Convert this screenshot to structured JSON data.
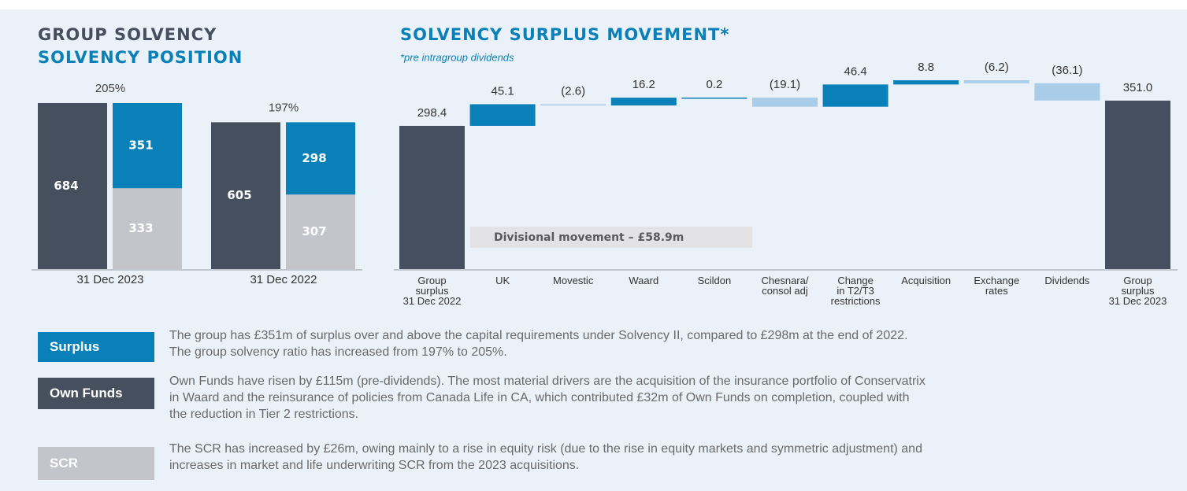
{
  "chart_data": [
    {
      "type": "grouped_stacked_bar",
      "title": "GROUP SOLVENCY",
      "subtitle": "SOLVENCY POSITION",
      "categories": [
        "31 Dec 2023",
        "31 Dec 2022"
      ],
      "series": [
        {
          "name": "Surplus",
          "color": "#0a80b8",
          "stack": 2,
          "values": [
            351,
            298
          ],
          "description": "The group has £351m of surplus over and above the capital requirements under Solvency II, compared to £298m at the end of 2022.\nThe group solvency ratio has increased from 197% to 205%."
        },
        {
          "name": "Own Funds",
          "color": "#454f5e",
          "stack": 1,
          "values": [
            684,
            605
          ],
          "description": "Own Funds have risen by £115m (pre-dividends). The most material drivers are the acquisition of the insurance portfolio of Conservatrix\nin Waard and the reinsurance of policies from Canada Life in CA, which contributed £32m of Own Funds on completion, coupled with\nthe reduction in Tier 2 restrictions."
        },
        {
          "name": "SCR",
          "color": "#c4c4cb",
          "stack": 2,
          "values": [
            333,
            307
          ],
          "description": "The SCR has increased by £26m, owing mainly to a rise in equity risk (due to the rise in equity markets and symmetric adjustment) and\nincreases in market and life underwriting SCR from the 2023 acquisitions."
        }
      ],
      "ratio": {
        "values": [
          205,
          197
        ],
        "value_labels": [
          "205%",
          "197%"
        ]
      }
    },
    {
      "type": "waterfall",
      "title": "SOLVENCY SURPLUS MOVEMENT*",
      "subtitle": "*pre intragroup dividends",
      "categories": [
        "Group\nsurplus\n31 Dec 2022",
        "UK",
        "Movestic",
        "Waard",
        "Scildon",
        "Chesnara/\nconsol adj",
        "Change\nin T2/T3\nrestrictions",
        "Acquisition",
        "Exchange\nrates",
        "Dividends",
        "Group\nsurplus\n31 Dec 2023"
      ],
      "values": [
        298.4,
        45.1,
        -2.6,
        16.2,
        0.2,
        -19.1,
        46.4,
        8.8,
        -6.2,
        -36.1,
        351.0
      ],
      "value_labels": [
        "298.4",
        "45.1",
        "(2.6)",
        "16.2",
        "0.2",
        "(19.1)",
        "46.4",
        "8.8",
        "(6.2)",
        "(36.1)",
        "351.0"
      ],
      "total_color": "#454f5e",
      "increase_color": "#0a80b8",
      "decrease_color": "#a9cde8",
      "annotation": "Divisional movement – £58.9m"
    }
  ]
}
